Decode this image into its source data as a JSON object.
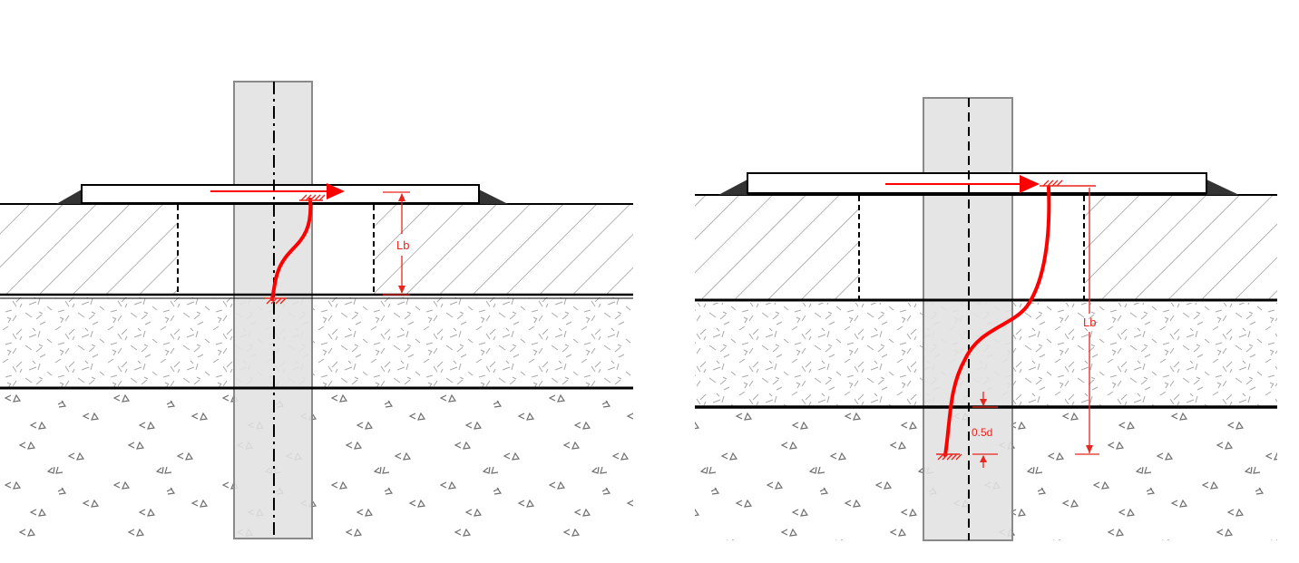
{
  "panels": [
    {
      "id": "left",
      "length_label": "Lb"
    },
    {
      "id": "right",
      "length_label": "Lb",
      "offset_label": "0.5d"
    }
  ],
  "colors": {
    "crack": "#ff0000",
    "dimension": "#e8251f",
    "pile": "#e2e2e2",
    "pile_edge": "#8a8a8a",
    "line": "#000000",
    "hatch": "#8c8c8c",
    "aggregate": "#8a8a8a"
  }
}
